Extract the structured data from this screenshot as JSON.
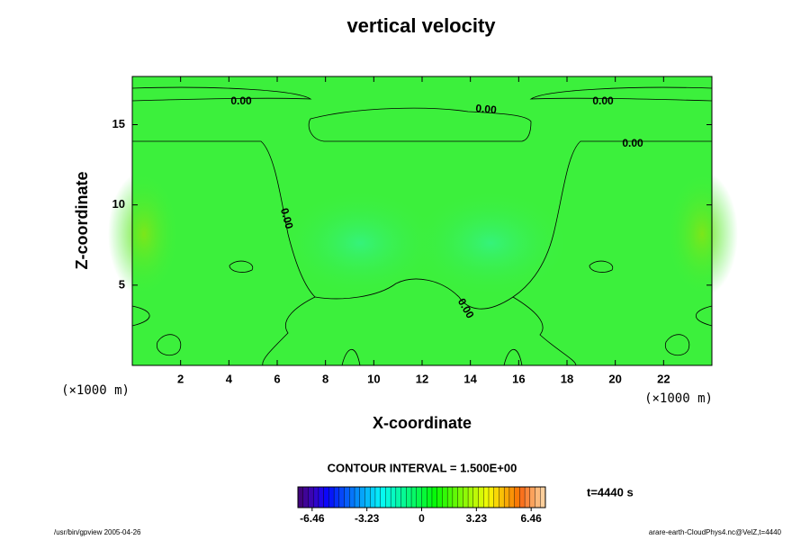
{
  "chart_data": {
    "type": "contour",
    "title": "vertical velocity",
    "xlabel": "X-coordinate",
    "ylabel": "Z-coordinate",
    "xunit": "(×1000 m)",
    "yunit": "(×1000 m)",
    "xlim": [
      0,
      24
    ],
    "xticks": [
      2,
      4,
      6,
      8,
      10,
      12,
      14,
      16,
      18,
      20,
      22
    ],
    "ylim": [
      0,
      18
    ],
    "yticks": [
      5,
      10,
      15
    ],
    "contour_labels": [
      "0.00",
      "0.00",
      "0.00",
      "0.00",
      "0.00",
      "0.00"
    ],
    "contour_interval_text": "CONTOUR INTERVAL = 1.500E+00",
    "clim": [
      -7.3,
      7.3
    ],
    "cticks": [
      -6.46,
      -3.23,
      0,
      3.23,
      6.46
    ],
    "time_text": "t=4440 s",
    "footer_left": "/usr/bin/gpview 2005-04-26",
    "footer_right": "arare-earth-CloudPhys4.nc@VelZ,t=4440"
  }
}
